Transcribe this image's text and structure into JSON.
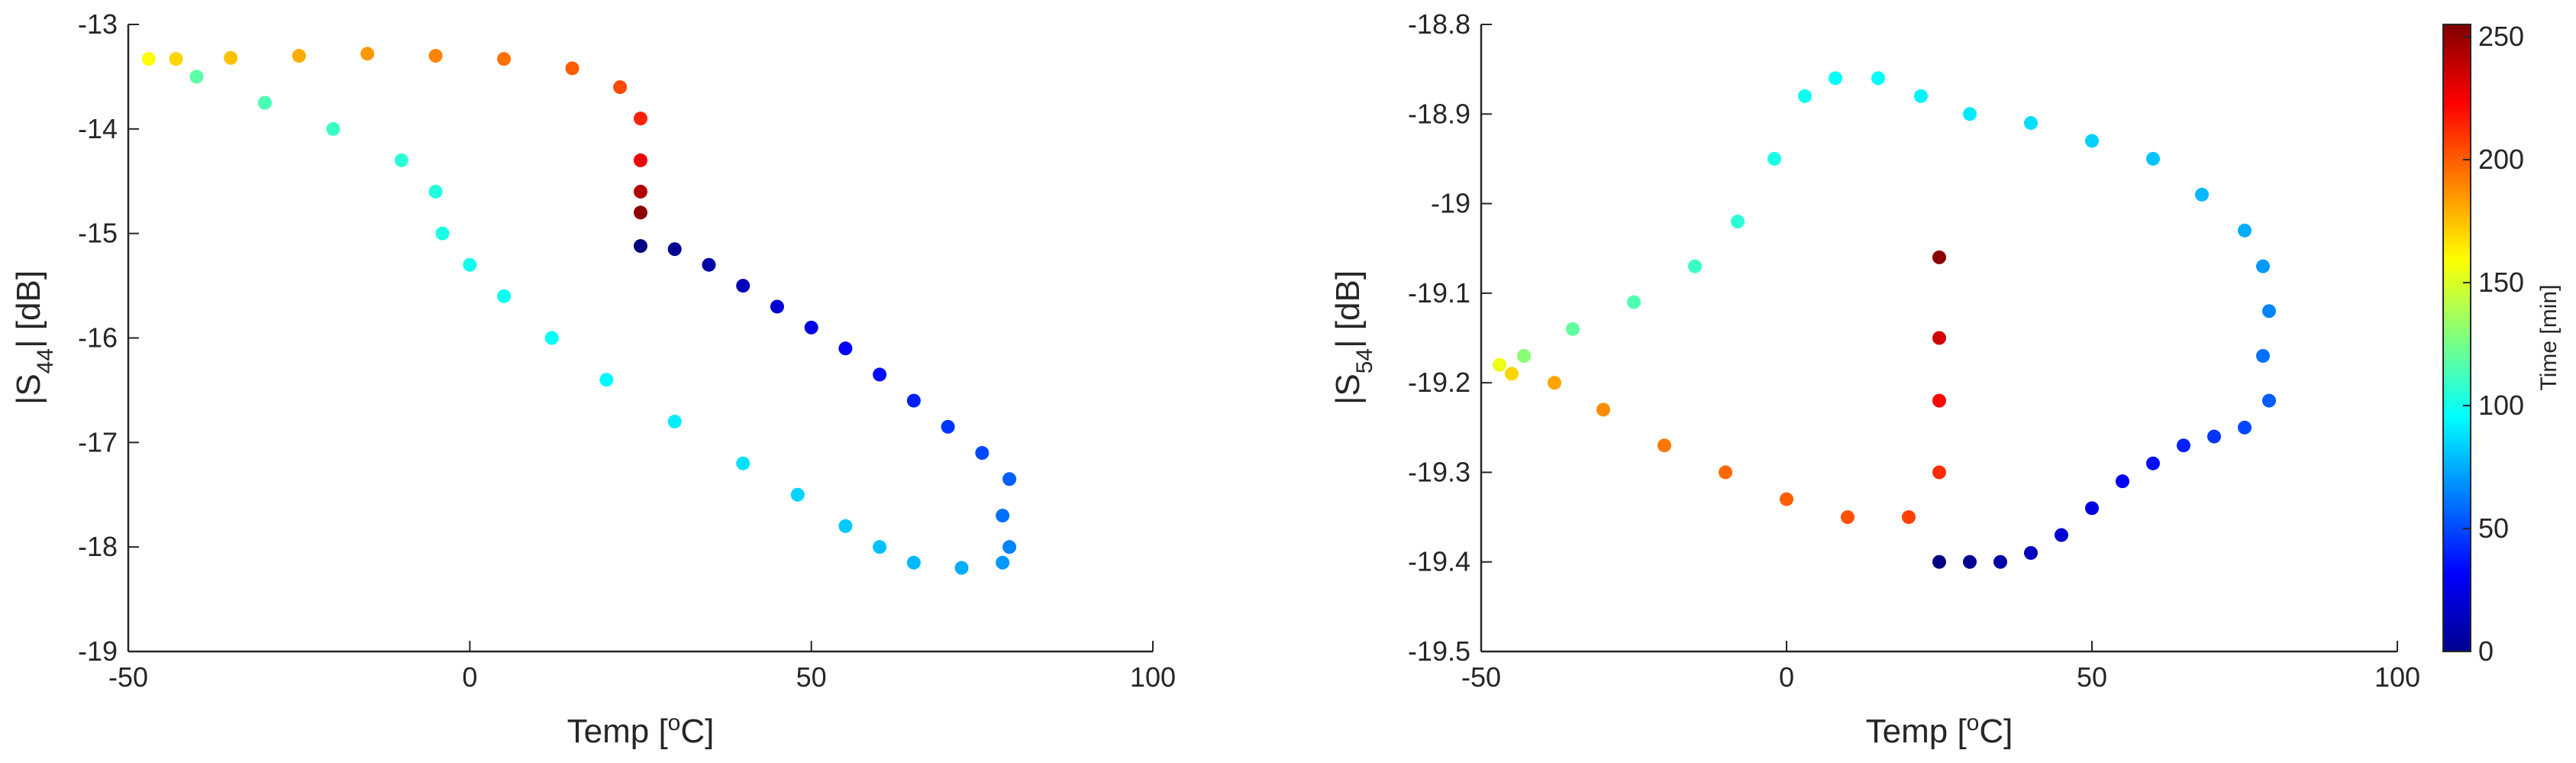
{
  "chart_data": [
    {
      "type": "scatter",
      "xlabel": "Temp [°C]",
      "ylabel": "|S44| [dB]",
      "xlim": [
        -50,
        100
      ],
      "ylim": [
        -19,
        -13
      ],
      "xticks": [
        "-50",
        "0",
        "50",
        "100"
      ],
      "yticks": [
        "-19",
        "-18",
        "-17",
        "-16",
        "-15",
        "-14",
        "-13"
      ],
      "series": [
        {
          "note": "color encodes time [min]",
          "points": [
            {
              "x": 25,
              "y": -15.12,
              "t": 0
            },
            {
              "x": 30,
              "y": -15.15,
              "t": 5
            },
            {
              "x": 35,
              "y": -15.3,
              "t": 10
            },
            {
              "x": 40,
              "y": -15.5,
              "t": 15
            },
            {
              "x": 45,
              "y": -15.7,
              "t": 20
            },
            {
              "x": 50,
              "y": -15.9,
              "t": 25
            },
            {
              "x": 55,
              "y": -16.1,
              "t": 30
            },
            {
              "x": 60,
              "y": -16.35,
              "t": 35
            },
            {
              "x": 65,
              "y": -16.6,
              "t": 40
            },
            {
              "x": 70,
              "y": -16.85,
              "t": 45
            },
            {
              "x": 75,
              "y": -17.1,
              "t": 50
            },
            {
              "x": 79,
              "y": -17.35,
              "t": 55
            },
            {
              "x": 78,
              "y": -17.7,
              "t": 60
            },
            {
              "x": 79,
              "y": -18.0,
              "t": 65
            },
            {
              "x": 78,
              "y": -18.15,
              "t": 70
            },
            {
              "x": 72,
              "y": -18.2,
              "t": 75
            },
            {
              "x": 65,
              "y": -18.15,
              "t": 78
            },
            {
              "x": 60,
              "y": -18.0,
              "t": 80
            },
            {
              "x": 55,
              "y": -17.8,
              "t": 82
            },
            {
              "x": 48,
              "y": -17.5,
              "t": 85
            },
            {
              "x": 40,
              "y": -17.2,
              "t": 88
            },
            {
              "x": 30,
              "y": -16.8,
              "t": 91
            },
            {
              "x": 20,
              "y": -16.4,
              "t": 94
            },
            {
              "x": 12,
              "y": -16.0,
              "t": 96
            },
            {
              "x": 5,
              "y": -15.6,
              "t": 98
            },
            {
              "x": 0,
              "y": -15.3,
              "t": 100
            },
            {
              "x": -4,
              "y": -15.0,
              "t": 102
            },
            {
              "x": -5,
              "y": -14.6,
              "t": 104
            },
            {
              "x": -10,
              "y": -14.3,
              "t": 106
            },
            {
              "x": -20,
              "y": -14.0,
              "t": 110
            },
            {
              "x": -30,
              "y": -13.75,
              "t": 114
            },
            {
              "x": -40,
              "y": -13.5,
              "t": 118
            },
            {
              "x": -47,
              "y": -13.33,
              "t": 160
            },
            {
              "x": -43,
              "y": -13.33,
              "t": 170
            },
            {
              "x": -35,
              "y": -13.32,
              "t": 175
            },
            {
              "x": -25,
              "y": -13.3,
              "t": 180
            },
            {
              "x": -15,
              "y": -13.28,
              "t": 185
            },
            {
              "x": -5,
              "y": -13.3,
              "t": 190
            },
            {
              "x": 5,
              "y": -13.33,
              "t": 195
            },
            {
              "x": 15,
              "y": -13.42,
              "t": 200
            },
            {
              "x": 22,
              "y": -13.6,
              "t": 205
            },
            {
              "x": 25,
              "y": -13.9,
              "t": 215
            },
            {
              "x": 25,
              "y": -14.3,
              "t": 228
            },
            {
              "x": 25,
              "y": -14.6,
              "t": 242
            },
            {
              "x": 25,
              "y": -14.8,
              "t": 252
            }
          ]
        }
      ]
    },
    {
      "type": "scatter",
      "xlabel": "Temp [°C]",
      "ylabel": "|S54| [dB]",
      "xlim": [
        -50,
        100
      ],
      "ylim": [
        -19.5,
        -18.8
      ],
      "xticks": [
        "-50",
        "0",
        "50",
        "100"
      ],
      "yticks": [
        "-19.5",
        "-19.4",
        "-19.3",
        "-19.2",
        "-19.1",
        "-19",
        "-18.9",
        "-18.8"
      ],
      "colorbar": {
        "label": "Time [min]",
        "ticks": [
          "0",
          "50",
          "100",
          "150",
          "200",
          "250"
        ],
        "range": [
          0,
          255
        ]
      },
      "series": [
        {
          "note": "color encodes time [min]",
          "points": [
            {
              "x": 25,
              "y": -19.4,
              "t": 0
            },
            {
              "x": 30,
              "y": -19.4,
              "t": 5
            },
            {
              "x": 35,
              "y": -19.4,
              "t": 10
            },
            {
              "x": 40,
              "y": -19.39,
              "t": 15
            },
            {
              "x": 45,
              "y": -19.37,
              "t": 20
            },
            {
              "x": 50,
              "y": -19.34,
              "t": 25
            },
            {
              "x": 55,
              "y": -19.31,
              "t": 30
            },
            {
              "x": 60,
              "y": -19.29,
              "t": 35
            },
            {
              "x": 65,
              "y": -19.27,
              "t": 40
            },
            {
              "x": 70,
              "y": -19.26,
              "t": 45
            },
            {
              "x": 75,
              "y": -19.25,
              "t": 50
            },
            {
              "x": 79,
              "y": -19.22,
              "t": 55
            },
            {
              "x": 78,
              "y": -19.17,
              "t": 60
            },
            {
              "x": 79,
              "y": -19.12,
              "t": 65
            },
            {
              "x": 78,
              "y": -19.07,
              "t": 70
            },
            {
              "x": 75,
              "y": -19.03,
              "t": 75
            },
            {
              "x": 68,
              "y": -18.99,
              "t": 78
            },
            {
              "x": 60,
              "y": -18.95,
              "t": 81
            },
            {
              "x": 50,
              "y": -18.93,
              "t": 84
            },
            {
              "x": 40,
              "y": -18.91,
              "t": 87
            },
            {
              "x": 30,
              "y": -18.9,
              "t": 90
            },
            {
              "x": 22,
              "y": -18.88,
              "t": 93
            },
            {
              "x": 15,
              "y": -18.86,
              "t": 95
            },
            {
              "x": 8,
              "y": -18.86,
              "t": 97
            },
            {
              "x": 3,
              "y": -18.88,
              "t": 99
            },
            {
              "x": -2,
              "y": -18.95,
              "t": 102
            },
            {
              "x": -8,
              "y": -19.02,
              "t": 106
            },
            {
              "x": -15,
              "y": -19.07,
              "t": 110
            },
            {
              "x": -25,
              "y": -19.11,
              "t": 115
            },
            {
              "x": -35,
              "y": -19.14,
              "t": 120
            },
            {
              "x": -43,
              "y": -19.17,
              "t": 130
            },
            {
              "x": -47,
              "y": -19.18,
              "t": 155
            },
            {
              "x": -45,
              "y": -19.19,
              "t": 170
            },
            {
              "x": -38,
              "y": -19.2,
              "t": 182
            },
            {
              "x": -30,
              "y": -19.23,
              "t": 188
            },
            {
              "x": -20,
              "y": -19.27,
              "t": 193
            },
            {
              "x": -10,
              "y": -19.3,
              "t": 197
            },
            {
              "x": 0,
              "y": -19.33,
              "t": 200
            },
            {
              "x": 10,
              "y": -19.35,
              "t": 203
            },
            {
              "x": 20,
              "y": -19.35,
              "t": 207
            },
            {
              "x": 25,
              "y": -19.3,
              "t": 212
            },
            {
              "x": 25,
              "y": -19.22,
              "t": 222
            },
            {
              "x": 25,
              "y": -19.15,
              "t": 235
            },
            {
              "x": 25,
              "y": -19.06,
              "t": 252
            }
          ]
        }
      ]
    }
  ]
}
